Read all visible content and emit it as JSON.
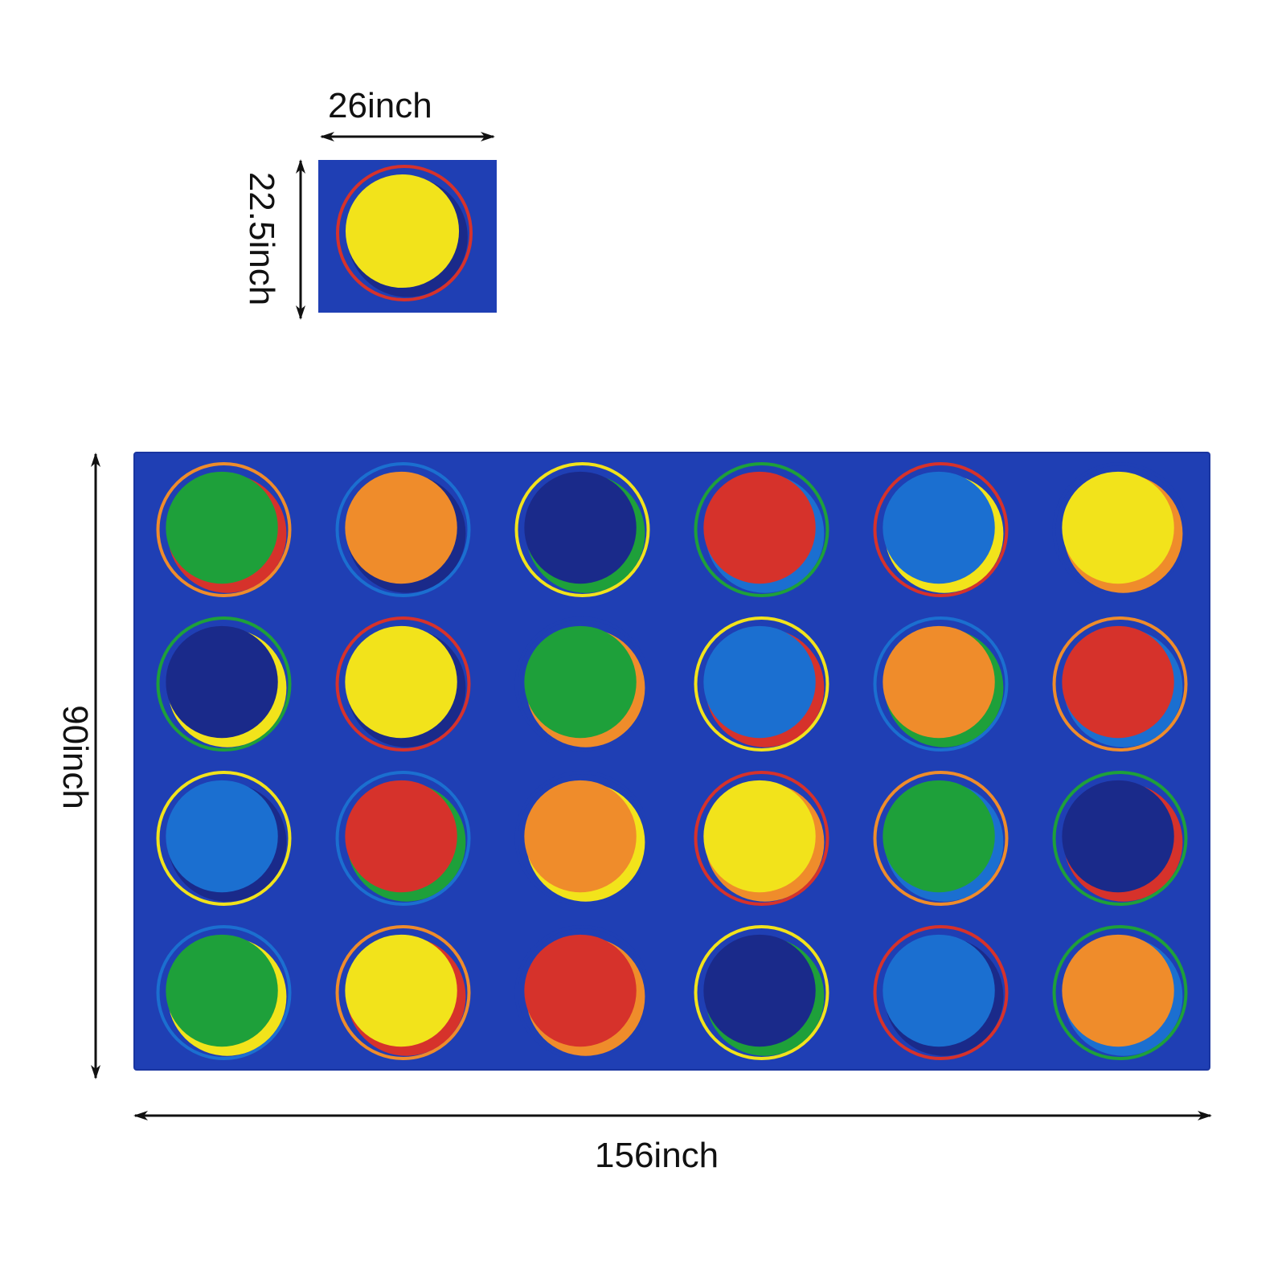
{
  "small_tile": {
    "width_label": "26inch",
    "height_label": "22.5inch",
    "circle": {
      "fill": "#f2e31b",
      "shadow": "#1a2a8a",
      "ring": "#d6322b"
    }
  },
  "rug": {
    "width_label": "156inch",
    "height_label": "90inch",
    "background": "#1f3fb4",
    "rows": 4,
    "cols": 6,
    "circles": [
      {
        "fill": "#1ea03a",
        "shadow": "#d6322b",
        "ring": "#ef8c2b"
      },
      {
        "fill": "#ef8c2b",
        "shadow": "#1a2a8a",
        "ring": "#1b6fd0"
      },
      {
        "fill": "#1a2a8a",
        "shadow": "#1ea03a",
        "ring": "#f2e31b"
      },
      {
        "fill": "#d6322b",
        "shadow": "#1b6fd0",
        "ring": "#1ea03a"
      },
      {
        "fill": "#1b6fd0",
        "shadow": "#f2e31b",
        "ring": "#d6322b"
      },
      {
        "fill": "#f2e31b",
        "shadow": "#ef8c2b",
        "ring": "#1f3fb4"
      },
      {
        "fill": "#1a2a8a",
        "shadow": "#f2e31b",
        "ring": "#1ea03a"
      },
      {
        "fill": "#f2e31b",
        "shadow": "#1a2a8a",
        "ring": "#d6322b"
      },
      {
        "fill": "#1ea03a",
        "shadow": "#ef8c2b",
        "ring": "#1f3fb4"
      },
      {
        "fill": "#1b6fd0",
        "shadow": "#d6322b",
        "ring": "#f2e31b"
      },
      {
        "fill": "#ef8c2b",
        "shadow": "#1ea03a",
        "ring": "#1b6fd0"
      },
      {
        "fill": "#d6322b",
        "shadow": "#1b6fd0",
        "ring": "#ef8c2b"
      },
      {
        "fill": "#1b6fd0",
        "shadow": "#1a2a8a",
        "ring": "#f2e31b"
      },
      {
        "fill": "#d6322b",
        "shadow": "#1ea03a",
        "ring": "#1b6fd0"
      },
      {
        "fill": "#ef8c2b",
        "shadow": "#f2e31b",
        "ring": "#1f3fb4"
      },
      {
        "fill": "#f2e31b",
        "shadow": "#ef8c2b",
        "ring": "#d6322b"
      },
      {
        "fill": "#1ea03a",
        "shadow": "#1b6fd0",
        "ring": "#ef8c2b"
      },
      {
        "fill": "#1a2a8a",
        "shadow": "#d6322b",
        "ring": "#1ea03a"
      },
      {
        "fill": "#1ea03a",
        "shadow": "#f2e31b",
        "ring": "#1b6fd0"
      },
      {
        "fill": "#f2e31b",
        "shadow": "#d6322b",
        "ring": "#ef8c2b"
      },
      {
        "fill": "#d6322b",
        "shadow": "#ef8c2b",
        "ring": "#1f3fb4"
      },
      {
        "fill": "#1a2a8a",
        "shadow": "#1ea03a",
        "ring": "#f2e31b"
      },
      {
        "fill": "#1b6fd0",
        "shadow": "#1a2a8a",
        "ring": "#d6322b"
      },
      {
        "fill": "#ef8c2b",
        "shadow": "#1b6fd0",
        "ring": "#1ea03a"
      }
    ]
  },
  "arrow_color": "#111111"
}
